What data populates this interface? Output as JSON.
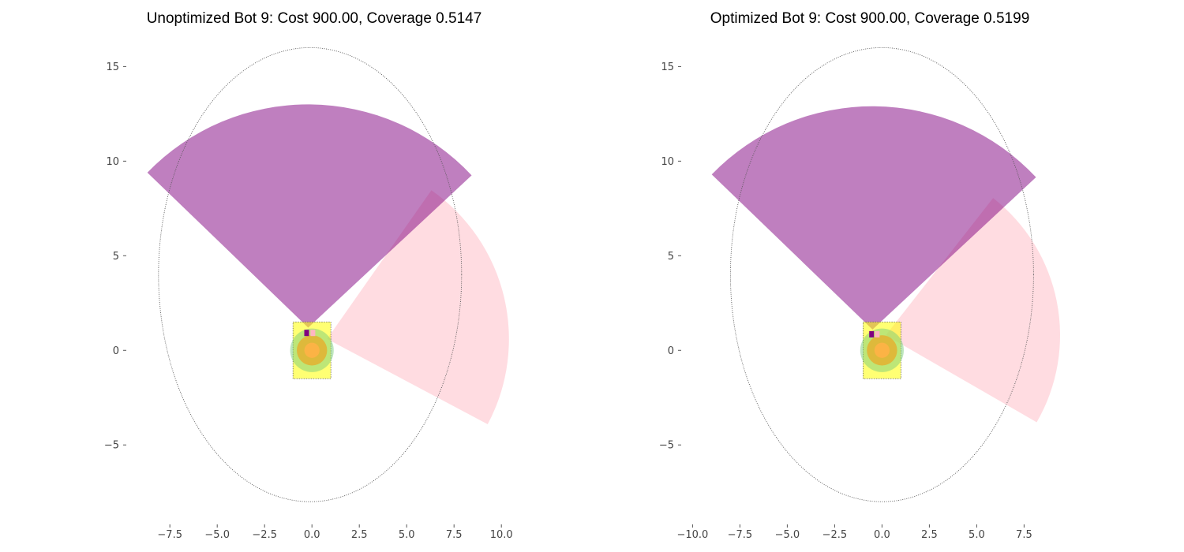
{
  "chart_data": [
    {
      "type": "scatter",
      "title": "Unoptimized Bot 9: Cost 900.00, Coverage 0.5147",
      "xlabel": "",
      "ylabel": "",
      "xlim": [
        -9.8,
        11.2
      ],
      "ylim": [
        -9.2,
        16.6
      ],
      "xticks": [
        -7.5,
        -5.0,
        -2.5,
        0.0,
        2.5,
        5.0,
        7.5,
        10.0
      ],
      "xtick_labels": [
        "−7.5",
        "−5.0",
        "−2.5",
        "0.0",
        "2.5",
        "5.0",
        "7.5",
        "10.0"
      ],
      "yticks": [
        -5,
        0,
        5,
        10,
        15
      ],
      "ytick_labels": [
        "−5",
        "0",
        "5",
        "10",
        "15"
      ],
      "grid": false,
      "boundary_ellipse": {
        "center": [
          -0.1,
          4.0
        ],
        "rx": 8.0,
        "ry": 12.0,
        "color": "#555555"
      },
      "sensors": [
        {
          "name": "",
          "apex": [
            0.8,
            0.6
          ],
          "radius": 9.6,
          "start_deg": -28,
          "end_deg": 55,
          "color": "#ffb6c1",
          "opacity": 0.48
        },
        {
          "name": "",
          "apex": [
            -0.2,
            1.2
          ],
          "radius": 11.8,
          "start_deg": 43,
          "end_deg": 136,
          "color": "#800080",
          "opacity": 0.5
        }
      ],
      "robot": {
        "body_rect": {
          "x0": -1.0,
          "y0": -1.5,
          "x1": 1.0,
          "y1": 1.5,
          "color": "#ffff00",
          "opacity": 0.55
        },
        "rings": [
          {
            "center": [
              0.0,
              0.0
            ],
            "r": 1.15,
            "color": "#7ccd7c",
            "opacity": 0.5
          },
          {
            "center": [
              0.0,
              0.0
            ],
            "r": 0.8,
            "color": "#ff8c00",
            "opacity": 0.5
          },
          {
            "center": [
              0.0,
              0.0
            ],
            "r": 0.4,
            "color": "#ffb347",
            "opacity": 0.9
          }
        ],
        "sensor_marks": [
          {
            "x": -0.28,
            "y": 0.92,
            "color": "#800080"
          },
          {
            "x": 0.05,
            "y": 0.92,
            "color": "#ffb6c1"
          }
        ]
      }
    },
    {
      "type": "scatter",
      "title": "Optimized Bot 9: Cost 900.00, Coverage 0.5199",
      "xlabel": "",
      "ylabel": "",
      "xlim": [
        -10.6,
        9.4
      ],
      "ylim": [
        -9.2,
        16.6
      ],
      "xticks": [
        -10.0,
        -7.5,
        -5.0,
        -2.5,
        0.0,
        2.5,
        5.0,
        7.5
      ],
      "xtick_labels": [
        "−10.0",
        "−7.5",
        "−5.0",
        "−2.5",
        "0.0",
        "2.5",
        "5.0",
        "7.5"
      ],
      "yticks": [
        -5,
        0,
        5,
        10,
        15
      ],
      "ytick_labels": [
        "−5",
        "0",
        "5",
        "10",
        "15"
      ],
      "grid": false,
      "boundary_ellipse": {
        "center": [
          0.0,
          4.0
        ],
        "rx": 8.0,
        "ry": 12.0,
        "color": "#555555"
      },
      "sensors": [
        {
          "name": "",
          "apex": [
            0.2,
            0.8
          ],
          "radius": 9.2,
          "start_deg": -30,
          "end_deg": 52,
          "color": "#ffb6c1",
          "opacity": 0.48
        },
        {
          "name": "",
          "apex": [
            -0.5,
            1.1
          ],
          "radius": 11.8,
          "start_deg": 43,
          "end_deg": 136,
          "color": "#800080",
          "opacity": 0.5
        }
      ],
      "robot": {
        "body_rect": {
          "x0": -1.0,
          "y0": -1.5,
          "x1": 1.0,
          "y1": 1.5,
          "color": "#ffff00",
          "opacity": 0.55
        },
        "rings": [
          {
            "center": [
              0.0,
              0.0
            ],
            "r": 1.15,
            "color": "#7ccd7c",
            "opacity": 0.5
          },
          {
            "center": [
              0.0,
              0.0
            ],
            "r": 0.8,
            "color": "#ff8c00",
            "opacity": 0.5
          },
          {
            "center": [
              0.0,
              0.0
            ],
            "r": 0.4,
            "color": "#ffb347",
            "opacity": 0.9
          }
        ],
        "sensor_marks": [
          {
            "x": -0.55,
            "y": 0.85,
            "color": "#800080"
          },
          {
            "x": -0.25,
            "y": 0.85,
            "color": "#ffb6c1"
          }
        ]
      }
    }
  ]
}
